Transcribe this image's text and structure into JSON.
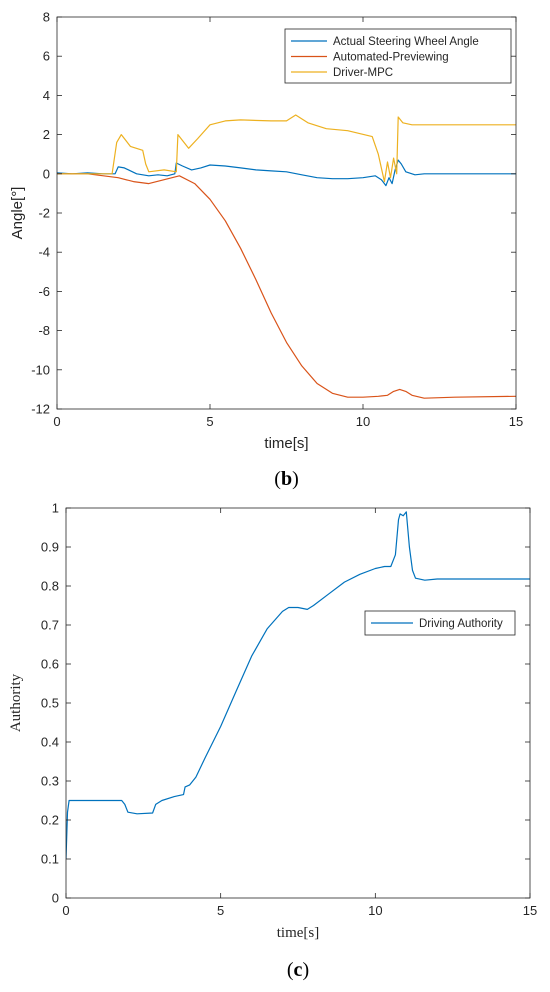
{
  "colors": {
    "series_blue": "#0072BD",
    "series_orange": "#D95319",
    "series_yellow": "#EDB120",
    "axis": "#262626",
    "box": "#262626"
  },
  "panel_b": {
    "label_open": "(",
    "label_letter": "b",
    "label_close": ")"
  },
  "panel_c": {
    "label_open": "(",
    "label_letter": "c",
    "label_close": ")"
  },
  "chart_data": [
    {
      "id": "b",
      "type": "line",
      "xlabel": "time[s]",
      "ylabel": "Angle[°]",
      "xlim": [
        0,
        15
      ],
      "ylim": [
        -12,
        8
      ],
      "xticks": [
        0,
        5,
        10,
        15
      ],
      "yticks": [
        -12,
        -10,
        -8,
        -6,
        -4,
        -2,
        0,
        2,
        4,
        6,
        8
      ],
      "grid": false,
      "legend_position": "top-right",
      "series": [
        {
          "name": "Actual Steering Wheel Angle",
          "color": "#0072BD",
          "x": [
            0,
            0.5,
            1.0,
            1.5,
            1.9,
            2.0,
            2.2,
            2.6,
            3.0,
            3.3,
            3.6,
            3.85,
            3.9,
            4.1,
            4.4,
            4.7,
            5.0,
            5.5,
            6.0,
            6.5,
            7.0,
            7.5,
            8.0,
            8.5,
            9.0,
            9.5,
            10.0,
            10.4,
            10.6,
            10.75,
            10.85,
            10.95,
            11.05,
            11.15,
            11.25,
            11.4,
            11.7,
            12.0,
            13.0,
            14.0,
            15.0
          ],
          "y": [
            0.05,
            0.0,
            0.05,
            0.0,
            0.0,
            0.35,
            0.3,
            0.0,
            -0.1,
            -0.05,
            -0.1,
            0.0,
            0.55,
            0.4,
            0.2,
            0.3,
            0.45,
            0.4,
            0.3,
            0.2,
            0.15,
            0.1,
            -0.05,
            -0.2,
            -0.25,
            -0.25,
            -0.2,
            -0.1,
            -0.3,
            -0.6,
            -0.2,
            -0.5,
            0.2,
            0.7,
            0.5,
            0.1,
            -0.05,
            0.0,
            0.0,
            0.0,
            0.0
          ]
        },
        {
          "name": "Automated-Previewing",
          "color": "#D95319",
          "x": [
            0,
            1.0,
            2.0,
            2.5,
            3.0,
            3.5,
            4.0,
            4.5,
            5.0,
            5.5,
            6.0,
            6.5,
            7.0,
            7.5,
            8.0,
            8.5,
            9.0,
            9.5,
            10.0,
            10.5,
            10.8,
            11.0,
            11.2,
            11.4,
            11.6,
            12.0,
            13.0,
            15.0
          ],
          "y": [
            0,
            0,
            -0.2,
            -0.4,
            -0.5,
            -0.3,
            -0.1,
            -0.5,
            -1.3,
            -2.4,
            -3.8,
            -5.4,
            -7.1,
            -8.6,
            -9.8,
            -10.7,
            -11.2,
            -11.4,
            -11.4,
            -11.35,
            -11.3,
            -11.1,
            -11.0,
            -11.1,
            -11.3,
            -11.45,
            -11.4,
            -11.35
          ]
        },
        {
          "name": "Driver-MPC",
          "color": "#EDB120",
          "x": [
            0,
            1.8,
            1.95,
            2.1,
            2.4,
            2.8,
            2.9,
            3.0,
            3.5,
            3.9,
            3.95,
            4.1,
            4.3,
            4.6,
            5.0,
            5.5,
            6.0,
            7.0,
            7.5,
            7.8,
            8.2,
            8.8,
            9.5,
            10.3,
            10.5,
            10.7,
            10.8,
            10.9,
            11.0,
            11.1,
            11.15,
            11.3,
            11.6,
            12.0,
            13.0,
            15.0
          ],
          "y": [
            0,
            0,
            1.6,
            2.0,
            1.4,
            1.2,
            0.5,
            0.1,
            0.2,
            0.1,
            2.0,
            1.7,
            1.3,
            1.8,
            2.5,
            2.7,
            2.75,
            2.7,
            2.7,
            3.0,
            2.6,
            2.3,
            2.2,
            1.9,
            1.0,
            -0.4,
            0.6,
            -0.2,
            0.8,
            0.0,
            2.9,
            2.6,
            2.5,
            2.5,
            2.5,
            2.5
          ]
        }
      ]
    },
    {
      "id": "c",
      "type": "line",
      "xlabel": "time[s]",
      "ylabel": "Authority",
      "xlim": [
        0,
        15
      ],
      "ylim": [
        0,
        1
      ],
      "xticks": [
        0,
        5,
        10,
        15
      ],
      "yticks": [
        0,
        0.1,
        0.2,
        0.3,
        0.4,
        0.5,
        0.6,
        0.7,
        0.8,
        0.9,
        1
      ],
      "grid": false,
      "legend_position": "right",
      "series": [
        {
          "name": "Driving Authority",
          "color": "#0072BD",
          "x": [
            0,
            0.05,
            0.1,
            0.3,
            1.0,
            1.8,
            1.9,
            2.0,
            2.3,
            2.8,
            2.9,
            3.1,
            3.5,
            3.8,
            3.85,
            4.0,
            4.2,
            4.5,
            5.0,
            5.5,
            6.0,
            6.5,
            7.0,
            7.2,
            7.5,
            7.8,
            8.0,
            8.5,
            9.0,
            9.5,
            10.0,
            10.3,
            10.5,
            10.65,
            10.75,
            10.8,
            10.9,
            11.0,
            11.1,
            11.2,
            11.3,
            11.6,
            12.0,
            13.0,
            15.0
          ],
          "y": [
            0.1,
            0.22,
            0.25,
            0.25,
            0.25,
            0.25,
            0.24,
            0.22,
            0.216,
            0.218,
            0.24,
            0.25,
            0.26,
            0.265,
            0.285,
            0.29,
            0.31,
            0.36,
            0.44,
            0.53,
            0.62,
            0.69,
            0.735,
            0.745,
            0.745,
            0.74,
            0.75,
            0.78,
            0.81,
            0.83,
            0.845,
            0.85,
            0.85,
            0.88,
            0.97,
            0.985,
            0.98,
            0.99,
            0.9,
            0.84,
            0.82,
            0.815,
            0.818,
            0.818,
            0.818
          ]
        }
      ]
    }
  ]
}
